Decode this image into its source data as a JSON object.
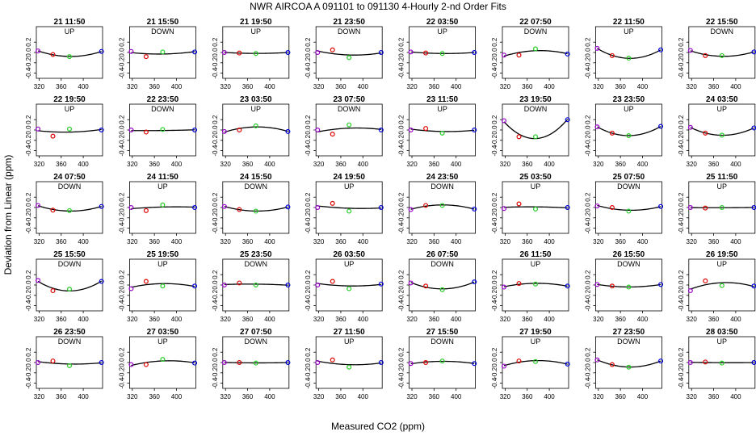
{
  "title": "NWR   AIRCOA A    091101 to 091130   4-Hourly 2-nd Order Fits",
  "xlabel": "Measured CO2 (ppm)",
  "ylabel": "Deviation from Linear (ppm)",
  "colors": {
    "fit": "#000000",
    "p1": "#9900cc",
    "p2": "#dd0000",
    "p3": "#22cc22",
    "p4": "#0000dd"
  },
  "chart_data": {
    "type": "scatter",
    "xlim": [
      315,
      435
    ],
    "ylim": [
      -0.5,
      0.5
    ],
    "x_ticks": [
      320,
      360,
      400
    ],
    "y_ticks": [
      0.2,
      0,
      -0.2,
      -0.4
    ],
    "tick_labels_y": [
      "0.2",
      "0.0",
      "-0.2",
      "-0.4"
    ],
    "tick_labels_x": [
      "320",
      "360",
      "400"
    ],
    "standard_x": [
      318,
      345,
      375,
      433
    ],
    "panels": [
      {
        "label": "21 11:50",
        "dir": "UP",
        "y": [
          0.03,
          -0.04,
          -0.08,
          0.02
        ]
      },
      {
        "label": "21 15:50",
        "dir": "DOWN",
        "y": [
          0.02,
          -0.08,
          0.01,
          0.01
        ]
      },
      {
        "label": "21 19:50",
        "dir": "UP",
        "y": [
          0.0,
          -0.01,
          -0.02,
          0.0
        ]
      },
      {
        "label": "21 23:50",
        "dir": "DOWN",
        "y": [
          0.0,
          0.05,
          -0.1,
          0.0
        ]
      },
      {
        "label": "22 03:50",
        "dir": "UP",
        "y": [
          0.01,
          -0.01,
          -0.02,
          0.0
        ]
      },
      {
        "label": "22 07:50",
        "dir": "DOWN",
        "y": [
          -0.05,
          -0.05,
          0.07,
          -0.03
        ]
      },
      {
        "label": "22 11:50",
        "dir": "UP",
        "y": [
          0.08,
          -0.06,
          -0.11,
          0.05
        ]
      },
      {
        "label": "22 15:50",
        "dir": "DOWN",
        "y": [
          0.04,
          -0.06,
          -0.06,
          0.01
        ]
      },
      {
        "label": "22 19:50",
        "dir": "UP",
        "y": [
          0.02,
          -0.12,
          0.02,
          0.0
        ]
      },
      {
        "label": "22 23:50",
        "dir": "DOWN",
        "y": [
          0.0,
          -0.04,
          0.01,
          0.0
        ]
      },
      {
        "label": "23 03:50",
        "dir": "UP",
        "y": [
          -0.03,
          0.0,
          0.08,
          -0.03
        ]
      },
      {
        "label": "23 07:50",
        "dir": "DOWN",
        "y": [
          0.0,
          -0.08,
          0.1,
          0.0
        ]
      },
      {
        "label": "23 11:50",
        "dir": "UP",
        "y": [
          0.0,
          0.03,
          -0.06,
          0.0
        ]
      },
      {
        "label": "23 19:50",
        "dir": "DOWN",
        "y": [
          0.18,
          -0.13,
          -0.13,
          0.2
        ]
      },
      {
        "label": "23 23:50",
        "dir": "UP",
        "y": [
          0.06,
          -0.06,
          -0.11,
          0.07
        ]
      },
      {
        "label": "24 03:50",
        "dir": "UP",
        "y": [
          0.05,
          -0.06,
          -0.1,
          0.04
        ]
      },
      {
        "label": "24 07:50",
        "dir": "DOWN",
        "y": [
          0.04,
          -0.05,
          -0.06,
          0.02
        ]
      },
      {
        "label": "24 11:50",
        "dir": "UP",
        "y": [
          0.0,
          -0.06,
          0.05,
          0.0
        ]
      },
      {
        "label": "24 15:50",
        "dir": "DOWN",
        "y": [
          0.02,
          -0.04,
          -0.07,
          0.01
        ]
      },
      {
        "label": "24 19:50",
        "dir": "UP",
        "y": [
          0.0,
          0.08,
          -0.07,
          0.0
        ]
      },
      {
        "label": "24 23:50",
        "dir": "DOWN",
        "y": [
          -0.04,
          0.04,
          0.04,
          -0.03
        ]
      },
      {
        "label": "25 03:50",
        "dir": "UP",
        "y": [
          -0.02,
          0.07,
          -0.03,
          0.0
        ]
      },
      {
        "label": "25 07:50",
        "dir": "DOWN",
        "y": [
          0.03,
          0.0,
          -0.07,
          0.02
        ]
      },
      {
        "label": "25 11:50",
        "dir": "UP",
        "y": [
          0.0,
          -0.01,
          0.0,
          0.0
        ]
      },
      {
        "label": "25 15:50",
        "dir": "DOWN",
        "y": [
          0.09,
          -0.11,
          -0.08,
          0.07
        ]
      },
      {
        "label": "25 19:50",
        "dir": "UP",
        "y": [
          -0.07,
          0.07,
          -0.02,
          -0.02
        ]
      },
      {
        "label": "25 23:50",
        "dir": "DOWN",
        "y": [
          0.0,
          0.04,
          0.0,
          0.0
        ]
      },
      {
        "label": "26 03:50",
        "dir": "UP",
        "y": [
          0.0,
          0.07,
          -0.07,
          0.02
        ]
      },
      {
        "label": "26 07:50",
        "dir": "DOWN",
        "y": [
          0.04,
          -0.02,
          -0.09,
          0.06
        ]
      },
      {
        "label": "26 11:50",
        "dir": "UP",
        "y": [
          -0.04,
          0.03,
          0.02,
          -0.02
        ]
      },
      {
        "label": "26 15:50",
        "dir": "DOWN",
        "y": [
          0.01,
          -0.02,
          -0.04,
          0.01
        ]
      },
      {
        "label": "26 19:50",
        "dir": "UP",
        "y": [
          -0.11,
          0.08,
          -0.01,
          -0.02
        ]
      },
      {
        "label": "26 23:50",
        "dir": "DOWN",
        "y": [
          0.0,
          0.03,
          -0.06,
          0.0
        ]
      },
      {
        "label": "27 03:50",
        "dir": "UP",
        "y": [
          -0.04,
          -0.04,
          0.06,
          -0.01
        ]
      },
      {
        "label": "27 07:50",
        "dir": "DOWN",
        "y": [
          0.0,
          0.0,
          -0.01,
          0.0
        ]
      },
      {
        "label": "27 11:50",
        "dir": "UP",
        "y": [
          0.0,
          0.05,
          -0.09,
          0.0
        ]
      },
      {
        "label": "27 15:50",
        "dir": "DOWN",
        "y": [
          -0.02,
          0.0,
          0.03,
          -0.02
        ]
      },
      {
        "label": "27 19:50",
        "dir": "UP",
        "y": [
          -0.07,
          0.03,
          0.02,
          -0.03
        ]
      },
      {
        "label": "27 23:50",
        "dir": "DOWN",
        "y": [
          0.05,
          -0.04,
          -0.09,
          0.03
        ]
      },
      {
        "label": "28 03:50",
        "dir": "UP",
        "y": [
          0.0,
          0.01,
          -0.01,
          0.0
        ]
      }
    ]
  }
}
